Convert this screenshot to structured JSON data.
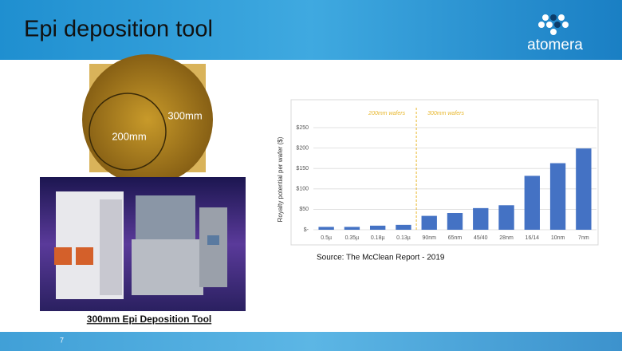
{
  "slide": {
    "title": "Epi deposition tool",
    "logo": "atomera",
    "wafer_labels": [
      "300mm",
      "200mm"
    ],
    "caption": "300mm Epi Deposition Tool",
    "source": "Source:  The McClean Report - 2019",
    "page_number": "7"
  },
  "chart_data": {
    "type": "bar",
    "categories": [
      "0.5µ",
      "0.35µ",
      "0.18µ",
      "0.13µ",
      "90nm",
      "65nm",
      "45/40",
      "28nm",
      "16/14",
      "10nm",
      "7nm"
    ],
    "values": [
      7,
      7,
      10,
      12,
      34,
      41,
      53,
      60,
      132,
      163,
      199
    ],
    "color": "#4472c4",
    "y_label": "Royalty potential per wafer ($)",
    "annotations": [
      "200mm wafers",
      "300mm wafers"
    ],
    "ylim": [
      0,
      250
    ],
    "yticks": [
      {
        "value": 0,
        "label": "$-"
      },
      {
        "value": 50,
        "label": "$50"
      },
      {
        "value": 100,
        "label": "$100"
      },
      {
        "value": 150,
        "label": "$150"
      },
      {
        "value": 200,
        "label": "$200"
      },
      {
        "value": 250,
        "label": "$250"
      }
    ],
    "grid": true
  }
}
